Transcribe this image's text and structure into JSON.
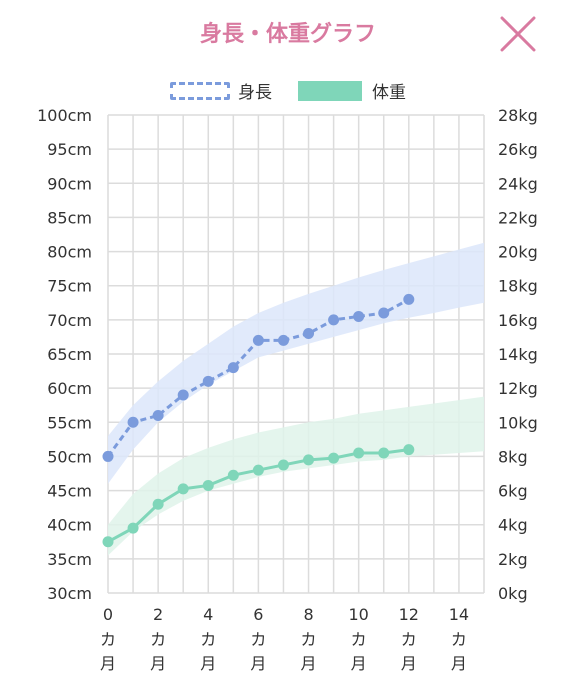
{
  "header": {
    "title": "身長・体重グラフ",
    "close_icon": "close-icon"
  },
  "colors": {
    "accent": "#d97aa0",
    "height": "#7b9bdc",
    "height_band": "#dce6fa",
    "weight": "#7fd6b9",
    "weight_band": "#dff3ea",
    "grid": "#dcdcdc"
  },
  "legend": {
    "height_label": "身長",
    "weight_label": "体重"
  },
  "chart_data": {
    "type": "line",
    "title": "身長・体重グラフ",
    "x": [
      0,
      1,
      2,
      3,
      4,
      5,
      6,
      7,
      8,
      9,
      10,
      11,
      12
    ],
    "xlim": [
      0,
      15
    ],
    "x_tick_values": [
      0,
      2,
      4,
      6,
      8,
      10,
      12,
      14
    ],
    "x_tick_unit": "カ月",
    "y_left": {
      "unit": "cm",
      "lim": [
        30,
        100
      ],
      "ticks": [
        30,
        35,
        40,
        45,
        50,
        55,
        60,
        65,
        70,
        75,
        80,
        85,
        90,
        95,
        100
      ],
      "tick_labels": [
        "30cm",
        "35cm",
        "40cm",
        "45cm",
        "50cm",
        "55cm",
        "60cm",
        "65cm",
        "70cm",
        "75cm",
        "80cm",
        "85cm",
        "90cm",
        "95cm",
        "100cm"
      ]
    },
    "y_right": {
      "unit": "kg",
      "lim": [
        0,
        28
      ],
      "ticks": [
        0,
        2,
        4,
        6,
        8,
        10,
        12,
        14,
        16,
        18,
        20,
        22,
        24,
        26,
        28
      ],
      "tick_labels": [
        "0kg",
        "2kg",
        "4kg",
        "6kg",
        "8kg",
        "10kg",
        "12kg",
        "14kg",
        "16kg",
        "18kg",
        "20kg",
        "22kg",
        "24kg",
        "26kg",
        "28kg"
      ]
    },
    "series": [
      {
        "name": "身長",
        "axis": "left",
        "style": "dashed",
        "values": [
          50,
          55,
          56,
          59,
          61,
          63,
          67,
          67,
          68,
          70,
          70.5,
          71,
          73
        ]
      },
      {
        "name": "体重",
        "axis": "right",
        "style": "solid",
        "values": [
          3.0,
          3.8,
          5.2,
          6.1,
          6.3,
          6.9,
          7.2,
          7.5,
          7.8,
          7.9,
          8.2,
          8.2,
          8.4
        ]
      }
    ],
    "bands": [
      {
        "series": "身長",
        "axis": "left",
        "x": [
          0,
          1,
          2,
          3,
          4,
          5,
          6,
          7,
          8,
          9,
          10,
          11,
          12,
          13,
          14,
          15
        ],
        "lower": [
          46,
          51,
          55,
          58,
          60.5,
          62.5,
          64.5,
          65.5,
          66.5,
          67.5,
          68.5,
          69.5,
          70.3,
          71,
          71.8,
          72.5
        ],
        "upper": [
          53,
          57.5,
          61,
          64,
          66.5,
          69,
          71,
          72.5,
          73.8,
          75,
          76.2,
          77.3,
          78.3,
          79.3,
          80.3,
          81.3
        ]
      },
      {
        "series": "体重",
        "axis": "right",
        "x": [
          0,
          1,
          2,
          3,
          4,
          5,
          6,
          7,
          8,
          9,
          10,
          11,
          12,
          13,
          14,
          15
        ],
        "lower": [
          2.2,
          3.6,
          4.6,
          5.4,
          6.0,
          6.4,
          6.8,
          7.1,
          7.3,
          7.5,
          7.7,
          7.8,
          8.0,
          8.1,
          8.2,
          8.3
        ],
        "upper": [
          4.0,
          5.8,
          7.0,
          7.9,
          8.5,
          9.0,
          9.4,
          9.7,
          10.0,
          10.2,
          10.5,
          10.7,
          10.9,
          11.1,
          11.3,
          11.5
        ]
      }
    ],
    "grid": true,
    "legend_position": "top-center"
  }
}
